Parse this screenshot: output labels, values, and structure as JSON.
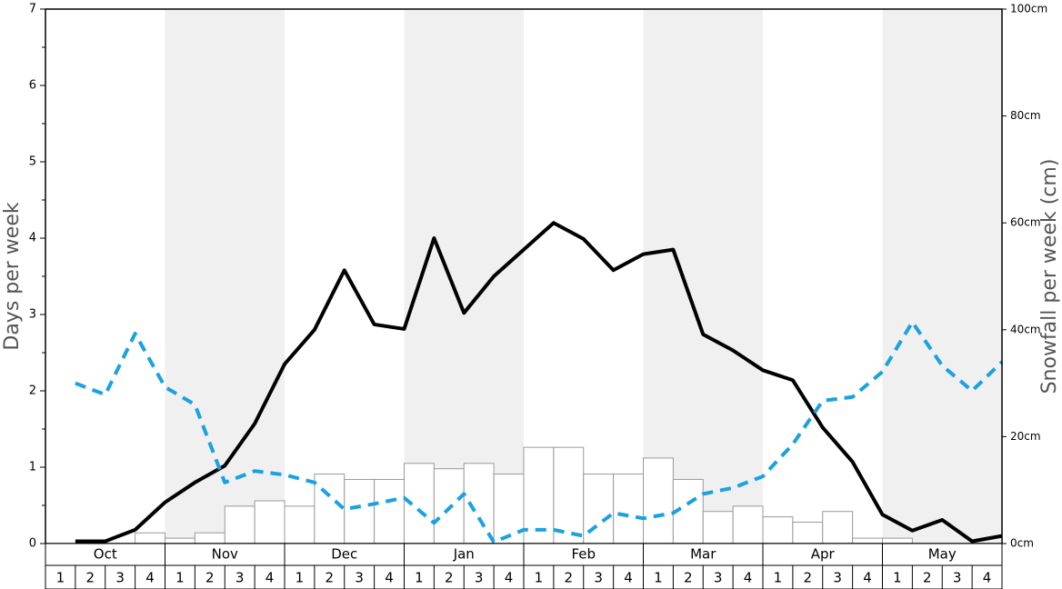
{
  "chart_data": {
    "type": "bar-line",
    "ylabel": "Days per week",
    "y2label": "Snowfall per week (cm)",
    "months": [
      "Oct",
      "Nov",
      "Dec",
      "Jan",
      "Feb",
      "Mar",
      "Apr",
      "May"
    ],
    "categories": [
      "1",
      "2",
      "3",
      "4",
      "1",
      "2",
      "3",
      "4",
      "1",
      "2",
      "3",
      "4",
      "1",
      "2",
      "3",
      "4",
      "1",
      "2",
      "3",
      "4",
      "1",
      "2",
      "3",
      "4",
      "1",
      "2",
      "3",
      "4",
      "1",
      "2",
      "3",
      "4"
    ],
    "ylim": [
      0,
      7
    ],
    "yticks": [
      0,
      1,
      2,
      3,
      4,
      5,
      6,
      7
    ],
    "y2lim": [
      0,
      100
    ],
    "y2ticks": [
      {
        "value": 0,
        "label": "0cm"
      },
      {
        "value": 20,
        "label": "20cm"
      },
      {
        "value": 40,
        "label": "40cm"
      },
      {
        "value": 60,
        "label": "60cm"
      },
      {
        "value": 80,
        "label": "80cm"
      },
      {
        "value": 100,
        "label": "100cm"
      }
    ],
    "series": [
      {
        "type": "bar",
        "axis": "y2",
        "color": "#ffffff",
        "values": [
          0,
          0,
          0,
          2,
          1,
          2,
          7,
          8,
          7,
          13,
          12,
          12,
          15,
          14,
          15,
          13,
          18,
          18,
          13,
          13,
          16,
          12,
          6,
          7,
          5,
          4,
          6,
          1,
          1,
          0,
          0,
          0
        ]
      },
      {
        "type": "line",
        "color": "#000000",
        "values": [
          0.03,
          0.03,
          0.18,
          0.54,
          0.8,
          1.02,
          1.57,
          2.35,
          2.8,
          3.58,
          2.87,
          2.81,
          4.0,
          3.02,
          3.5,
          3.85,
          4.2,
          3.99,
          3.58,
          3.79,
          3.85,
          2.74,
          2.53,
          2.27,
          2.14,
          1.52,
          1.07,
          0.38,
          0.17,
          0.31,
          0.03,
          0.1
        ]
      },
      {
        "type": "line",
        "color": "#1ba1e2",
        "dashed": true,
        "values": [
          2.1,
          1.95,
          2.75,
          2.05,
          1.82,
          0.8,
          0.95,
          0.9,
          0.8,
          0.45,
          0.52,
          0.6,
          0.27,
          0.65,
          0.02,
          0.18,
          0.18,
          0.1,
          0.4,
          0.33,
          0.4,
          0.65,
          0.73,
          0.88,
          1.3,
          1.87,
          1.92,
          2.25,
          2.9,
          2.33,
          2.0,
          2.38
        ]
      }
    ]
  }
}
